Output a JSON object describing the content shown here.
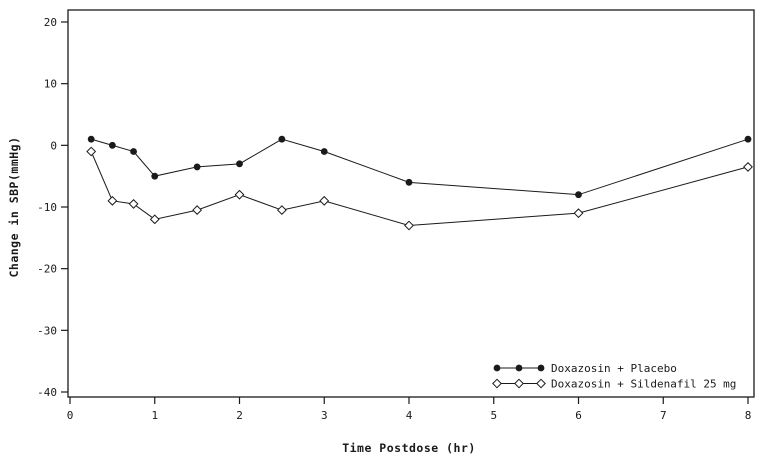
{
  "chart_data": {
    "type": "line",
    "title": "",
    "xlabel": "Time Postdose (hr)",
    "ylabel": "Change in SBP(mmHg)",
    "xlim": [
      0,
      8
    ],
    "ylim": [
      -40,
      20
    ],
    "xticks": [
      0,
      1,
      2,
      3,
      4,
      5,
      6,
      7,
      8
    ],
    "yticks": [
      -40,
      -30,
      -20,
      -10,
      0,
      10,
      20
    ],
    "grid": false,
    "legend_position": "bottom-right-inside",
    "axis_color": "#1a1a1a",
    "x": [
      0.25,
      0.5,
      0.75,
      1,
      1.5,
      2,
      2.5,
      3,
      4,
      6,
      8
    ],
    "series": [
      {
        "name": "Doxazosin + Placebo",
        "marker": "filled-circle",
        "color": "#1a1a1a",
        "values": [
          1,
          0,
          -1,
          -5,
          -3.5,
          -3,
          1,
          -1,
          -6,
          -8,
          1
        ]
      },
      {
        "name": "Doxazosin + Sildenafil 25 mg",
        "marker": "open-diamond",
        "color": "#1a1a1a",
        "values": [
          -1,
          -9,
          -9.5,
          -12,
          -10.5,
          -8,
          -10.5,
          -9,
          -13,
          -11,
          -3.5
        ]
      }
    ]
  }
}
